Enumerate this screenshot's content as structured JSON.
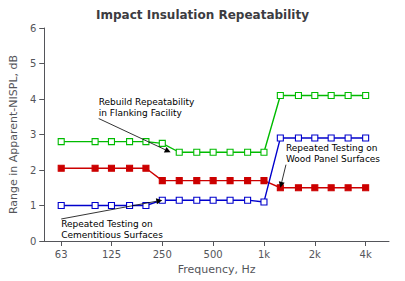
{
  "chart_data": {
    "type": "line",
    "title": "Impact Insulation Repeatability",
    "xlabel": "Frequency, Hz",
    "ylabel": "Range in Apparent-NISPL, dB",
    "x": [
      63,
      100,
      125,
      160,
      200,
      250,
      315,
      400,
      500,
      630,
      800,
      1000,
      1250,
      1600,
      2000,
      2500,
      3150,
      4000
    ],
    "series": [
      {
        "color": "#00bb00",
        "marker": "open-square",
        "values": [
          2.8,
          2.8,
          2.8,
          2.8,
          2.8,
          2.75,
          2.5,
          2.5,
          2.5,
          2.5,
          2.5,
          2.5,
          4.1,
          4.1,
          4.1,
          4.1,
          4.1,
          4.1
        ]
      },
      {
        "color": "#cc0000",
        "marker": "square",
        "values": [
          2.05,
          2.05,
          2.05,
          2.05,
          2.05,
          1.7,
          1.7,
          1.7,
          1.7,
          1.7,
          1.7,
          1.7,
          1.5,
          1.5,
          1.5,
          1.5,
          1.5,
          1.5
        ]
      },
      {
        "color": "#0000cc",
        "marker": "open-square",
        "values": [
          1.0,
          1.0,
          1.0,
          1.0,
          1.0,
          1.15,
          1.15,
          1.15,
          1.15,
          1.15,
          1.15,
          1.1,
          2.9,
          2.9,
          2.9,
          2.9,
          2.9,
          2.9
        ]
      }
    ],
    "log": "x",
    "xlim": [
      50,
      5500
    ],
    "xticks": [
      63,
      125,
      250,
      500,
      {
        "value": 1000,
        "label": "1k"
      },
      {
        "value": 2000,
        "label": "2k"
      },
      {
        "value": 4000,
        "label": "4k"
      }
    ],
    "ylim": [
      0,
      6
    ],
    "yticks": [
      0,
      1,
      2,
      3,
      4,
      5,
      6
    ],
    "grid": false,
    "annotations": [
      {
        "text": "Rebuild Repeatability\nin Flanking Facility",
        "xy": [
          280,
          2.5
        ],
        "xytext": [
          105,
          3.45
        ]
      },
      {
        "text": "Repeated Testing on\nCementitious Surfaces",
        "xy": [
          250,
          1.15
        ],
        "xytext": [
          63,
          0.62
        ]
      },
      {
        "text": "Repeated Testing on\nWood Panel Surfaces",
        "xy": [
          1250,
          1.5
        ],
        "xytext": [
          1350,
          2.15
        ]
      }
    ]
  }
}
